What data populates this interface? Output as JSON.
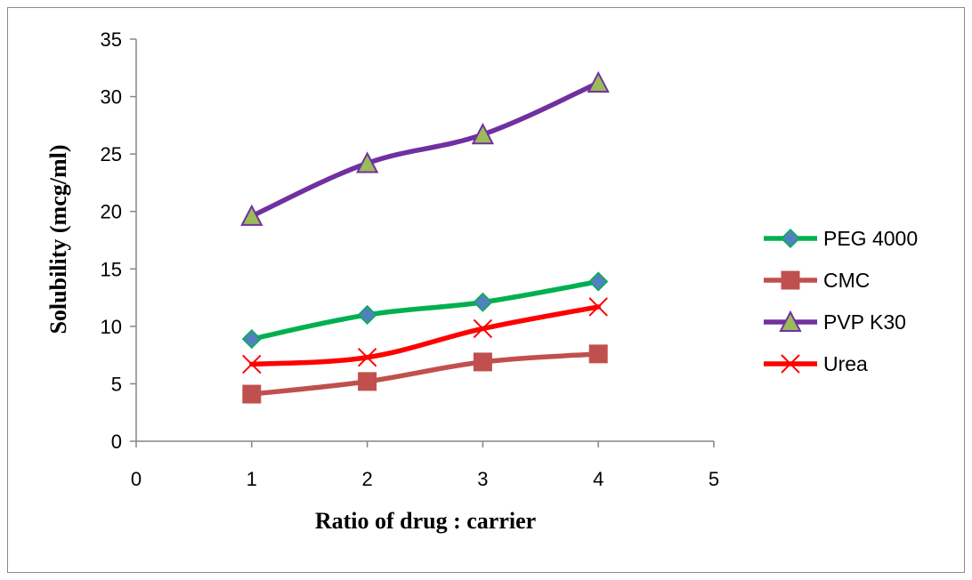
{
  "chart_data": {
    "type": "line",
    "title": "",
    "xlabel": "Ratio of drug : carrier",
    "ylabel": "Solubility (mcg/ml)",
    "xlim": [
      0,
      5
    ],
    "ylim": [
      0,
      35
    ],
    "x_ticks": [
      0,
      1,
      2,
      3,
      4,
      5
    ],
    "y_ticks": [
      0,
      5,
      10,
      15,
      20,
      25,
      30,
      35
    ],
    "grid": false,
    "legend_position": "right",
    "x": [
      1,
      2,
      3,
      4
    ],
    "series": [
      {
        "name": "PEG 4000",
        "values": [
          8.9,
          11.0,
          12.1,
          13.9
        ],
        "color": "#00b050",
        "marker": "diamond",
        "marker_color": "#4f81bd"
      },
      {
        "name": "CMC",
        "values": [
          4.1,
          5.2,
          6.9,
          7.6
        ],
        "color": "#c0504d",
        "marker": "square",
        "marker_color": "#c0504d"
      },
      {
        "name": "PVP K30",
        "values": [
          19.6,
          24.2,
          26.7,
          31.2
        ],
        "color": "#7030a0",
        "marker": "triangle",
        "marker_color": "#9bbb59"
      },
      {
        "name": "Urea",
        "values": [
          6.7,
          7.3,
          9.8,
          11.7
        ],
        "color": "#ff0000",
        "marker": "x",
        "marker_color": "#ff0000"
      }
    ]
  }
}
